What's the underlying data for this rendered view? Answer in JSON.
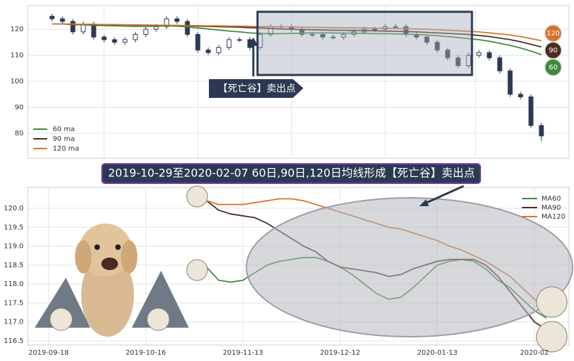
{
  "chart_data": [
    {
      "type": "candlestick",
      "open": [
        125,
        124,
        123,
        119,
        122,
        117,
        116,
        115,
        116,
        118,
        120,
        121,
        124,
        123,
        118,
        112,
        111,
        113,
        116,
        116,
        113,
        118,
        121,
        121,
        120,
        118,
        118,
        117,
        117,
        118,
        119,
        120,
        120,
        121,
        121,
        118,
        117,
        115,
        112,
        109,
        106,
        110,
        111,
        109,
        104,
        95,
        94,
        83
      ],
      "close": [
        124,
        123,
        119,
        122,
        117,
        116,
        115,
        116,
        118,
        120,
        121,
        124,
        123,
        118,
        112,
        111,
        113,
        116,
        116,
        113,
        118,
        121,
        121,
        120,
        118,
        118,
        117,
        117,
        118,
        119,
        120,
        120,
        121,
        121,
        118,
        117,
        115,
        112,
        109,
        106,
        110,
        111,
        109,
        104,
        95,
        94,
        83,
        79
      ],
      "high": [
        126,
        125,
        124,
        123,
        123,
        118,
        117,
        117,
        119,
        121,
        122,
        125,
        125,
        124,
        119,
        113,
        114,
        117,
        117,
        117,
        119,
        122,
        122,
        122,
        121,
        119,
        119,
        118,
        119,
        120,
        121,
        121,
        122,
        122,
        122,
        119,
        118,
        116,
        113,
        110,
        111,
        112,
        112,
        110,
        105,
        96,
        95,
        84
      ],
      "low": [
        123,
        122,
        118,
        118,
        116,
        115,
        114,
        114,
        115,
        117,
        119,
        120,
        122,
        117,
        111,
        110,
        110,
        112,
        115,
        112,
        112,
        117,
        120,
        119,
        117,
        117,
        116,
        116,
        116,
        117,
        118,
        119,
        119,
        120,
        117,
        116,
        114,
        111,
        108,
        105,
        105,
        109,
        108,
        103,
        94,
        93,
        82,
        77
      ],
      "series": [
        {
          "name": "60 ma",
          "color": "#3d8b3d",
          "values": [
            122,
            122,
            121.8,
            121.7,
            121.5,
            121.4,
            121.3,
            121.2,
            121.1,
            121.1,
            121.2,
            121.3,
            121.2,
            120.9,
            120.5,
            120.1,
            119.7,
            119.3,
            119.0,
            118.6,
            118.4,
            118.3,
            118.3,
            118.4,
            118.5,
            118.6,
            118.6,
            118.6,
            118.5,
            118.5,
            118.4,
            118.3,
            118.3,
            118.2,
            118.1,
            118.0,
            117.8,
            117.5,
            117.2,
            116.8,
            116.4,
            116.0,
            115.4,
            114.6,
            113.8,
            112.8,
            111.6,
            110.2
          ]
        },
        {
          "name": "90 ma",
          "color": "#4a2c22",
          "values": [
            122,
            122,
            121.9,
            121.9,
            121.8,
            121.8,
            121.7,
            121.7,
            121.6,
            121.6,
            121.5,
            121.5,
            121.4,
            121.3,
            121.2,
            121.1,
            121.0,
            120.9,
            120.8,
            120.6,
            120.5,
            120.3,
            120.1,
            120.0,
            119.9,
            119.8,
            119.7,
            119.6,
            119.6,
            119.5,
            119.5,
            119.4,
            119.3,
            119.2,
            119.1,
            119.0,
            118.8,
            118.6,
            118.4,
            118.2,
            118.0,
            117.6,
            117.2,
            116.6,
            116.0,
            115.2,
            114.2,
            113.2
          ]
        },
        {
          "name": "120 ma",
          "color": "#d9702a",
          "values": [
            122,
            122,
            122,
            121.9,
            121.9,
            121.8,
            121.8,
            121.7,
            121.7,
            121.6,
            121.6,
            121.5,
            121.5,
            121.4,
            121.4,
            121.3,
            121.3,
            121.2,
            121.2,
            121.1,
            121.0,
            121.0,
            120.9,
            120.9,
            120.8,
            120.7,
            120.7,
            120.6,
            120.6,
            120.5,
            120.5,
            120.4,
            120.4,
            120.3,
            120.2,
            120.1,
            120.0,
            119.8,
            119.6,
            119.4,
            119.2,
            119.0,
            118.6,
            118.2,
            117.8,
            117.2,
            116.4,
            115.6
          ]
        }
      ],
      "ylim": [
        70.4,
        129.1
      ],
      "yticks": [
        80,
        90,
        100,
        110,
        120
      ],
      "grid": true,
      "legend": "lower left",
      "annotation": "【死亡谷】卖出点",
      "end_labels": [
        "120",
        "90",
        "60"
      ]
    },
    {
      "type": "line",
      "title": "2019-10-29至2020-02-07 60日,90日,120日均线形成【死亡谷】卖出点",
      "categories": [
        "2019-09-18",
        null,
        null,
        null,
        null,
        null,
        null,
        null,
        "2019-10-16",
        null,
        null,
        null,
        null,
        null,
        null,
        null,
        "2019-11-13",
        null,
        null,
        null,
        null,
        null,
        null,
        null,
        "2019-12-12",
        null,
        null,
        null,
        null,
        null,
        null,
        null,
        "2020-01-13",
        null,
        null,
        null,
        null,
        null,
        null,
        null,
        "2020-02",
        null
      ],
      "series": [
        {
          "name": "MA60",
          "color": "#3d8b3d",
          "values": [
            null,
            null,
            null,
            null,
            null,
            null,
            null,
            null,
            null,
            null,
            null,
            null,
            null,
            118.45,
            118.1,
            118.05,
            118.1,
            118.3,
            118.5,
            118.6,
            118.65,
            118.7,
            118.7,
            118.6,
            118.45,
            118.25,
            118.0,
            117.75,
            117.6,
            117.65,
            117.9,
            118.2,
            118.5,
            118.6,
            118.65,
            118.6,
            118.4,
            118.1,
            117.9,
            117.6,
            117.3,
            117.1
          ]
        },
        {
          "name": "MA90",
          "color": "#4a2c22",
          "values": [
            null,
            null,
            null,
            null,
            null,
            null,
            null,
            null,
            null,
            null,
            null,
            null,
            null,
            120.2,
            119.95,
            119.85,
            119.8,
            119.75,
            119.6,
            119.4,
            119.2,
            119.0,
            118.85,
            118.6,
            118.45,
            118.4,
            118.35,
            118.3,
            118.2,
            118.25,
            118.4,
            118.5,
            118.6,
            118.65,
            118.65,
            118.65,
            118.5,
            118.2,
            117.8,
            117.4,
            117.0,
            116.8
          ]
        },
        {
          "name": "MA120",
          "color": "#d9702a",
          "values": [
            null,
            null,
            null,
            null,
            null,
            null,
            null,
            null,
            null,
            null,
            null,
            null,
            null,
            120.2,
            120.1,
            120.1,
            120.1,
            120.15,
            120.2,
            120.25,
            120.25,
            120.2,
            120.1,
            120.0,
            119.9,
            119.8,
            119.7,
            119.6,
            119.5,
            119.45,
            119.35,
            119.25,
            119.15,
            119.0,
            118.9,
            118.75,
            118.6,
            118.4,
            118.2,
            117.9,
            117.6,
            117.35
          ]
        }
      ],
      "ylim": [
        116.39,
        120.55
      ],
      "yticks": [
        {
          "value": 116.5,
          "label": "116.5"
        },
        {
          "value": 117,
          "label": "117.0"
        },
        117.5,
        {
          "value": 118,
          "label": "118.0"
        },
        118.5,
        {
          "value": 119,
          "label": "119.0"
        },
        119.5,
        {
          "value": 120,
          "label": "120.0"
        }
      ],
      "grid": true,
      "legend": "upper right"
    }
  ]
}
